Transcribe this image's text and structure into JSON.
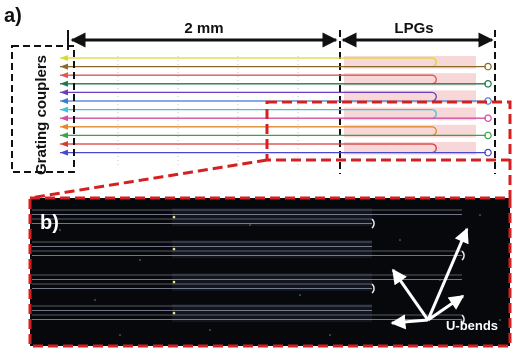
{
  "figure": {
    "panel_a": {
      "label": "a)",
      "dimension_label": "2 mm",
      "region_label": "LPGs",
      "couplers_label": "Grating couplers",
      "waveguide_colors": [
        "#d9d92b",
        "#8a6a2a",
        "#e0554e",
        "#1f7a4f",
        "#6a3fbf",
        "#3a7bd5",
        "#45c1d6",
        "#d44ea1",
        "#e08a2a",
        "#3aa548",
        "#d63a3a",
        "#4a48c9"
      ]
    },
    "panel_b": {
      "label": "b)",
      "annotation_label": "U-bends"
    },
    "colors": {
      "zoom_frame": "#d42020",
      "couplers_frame": "#111111",
      "arrow": "#111111",
      "photo_bg": "#07080c",
      "photo_line": "#c9d2e6",
      "callout_arrow": "#ffffff"
    }
  }
}
